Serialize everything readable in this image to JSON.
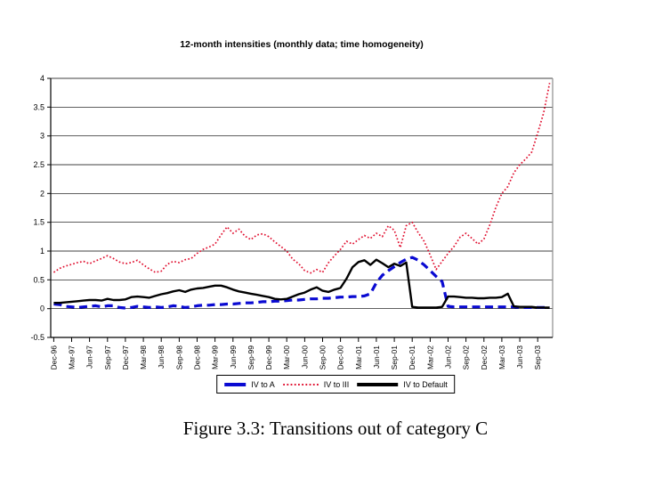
{
  "caption": "Figure 3.3: Transitions out of category C",
  "chart_data": {
    "type": "line",
    "title": "12-month intensities (monthly data; time homogeneity)",
    "xlabel": "",
    "ylabel": "",
    "ylim": [
      -0.5,
      4
    ],
    "ytick_step": 0.5,
    "y_tick_labels": [
      "4",
      "3.5",
      "3",
      "2.5",
      "2",
      "1.5",
      "1",
      "0.5",
      "0",
      "-0.5"
    ],
    "grid": "horizontal",
    "grid_color": "#000000",
    "axis_color": "#000000",
    "plot_border_right_color": "#8c8c8c",
    "legend_position": "bottom",
    "x_unit": "month",
    "x_start": "Dec-96",
    "months_per_tick": 3,
    "x_tick_labels": [
      "Dec-96",
      "Mar-97",
      "Jun-97",
      "Sep-97",
      "Dec-97",
      "Mar-98",
      "Jun-98",
      "Sep-98",
      "Dec-98",
      "Mar-99",
      "Jun-99",
      "Sep-99",
      "Dec-99",
      "Mar-00",
      "Jun-00",
      "Sep-00",
      "Dec-00",
      "Mar-01",
      "Jun-01",
      "Sep-01",
      "Dec-01",
      "Mar-02",
      "Jun-02",
      "Sep-02",
      "Dec-02",
      "Mar-03",
      "Jun-03",
      "Sep-03"
    ],
    "series": [
      {
        "name": "IV to A",
        "color": "#0a0ad2",
        "style": "dashed",
        "values": [
          0.08,
          0.07,
          0.04,
          0.03,
          0.02,
          0.03,
          0.04,
          0.05,
          0.03,
          0.05,
          0.05,
          0.02,
          0.01,
          0.02,
          0.04,
          0.03,
          0.02,
          0.03,
          0.02,
          0.03,
          0.05,
          0.04,
          0.02,
          0.03,
          0.05,
          0.06,
          0.06,
          0.07,
          0.07,
          0.08,
          0.08,
          0.09,
          0.1,
          0.1,
          0.11,
          0.12,
          0.12,
          0.13,
          0.13,
          0.14,
          0.15,
          0.15,
          0.16,
          0.17,
          0.17,
          0.18,
          0.18,
          0.19,
          0.2,
          0.2,
          0.21,
          0.21,
          0.22,
          0.26,
          0.45,
          0.58,
          0.66,
          0.73,
          0.8,
          0.86,
          0.89,
          0.84,
          0.76,
          0.66,
          0.56,
          0.47,
          0.04,
          0.03,
          0.03,
          0.03,
          0.03,
          0.03,
          0.03,
          0.03,
          0.03,
          0.03,
          0.03,
          0.03,
          0.02,
          0.02,
          0.02,
          0.02,
          0.02,
          0.02
        ]
      },
      {
        "name": "IV to III",
        "color": "#e01030",
        "style": "dotted",
        "values": [
          0.63,
          0.7,
          0.74,
          0.77,
          0.8,
          0.82,
          0.78,
          0.83,
          0.87,
          0.92,
          0.87,
          0.81,
          0.78,
          0.8,
          0.84,
          0.76,
          0.69,
          0.63,
          0.65,
          0.77,
          0.82,
          0.8,
          0.85,
          0.87,
          0.96,
          1.03,
          1.07,
          1.12,
          1.28,
          1.42,
          1.31,
          1.38,
          1.26,
          1.2,
          1.28,
          1.3,
          1.25,
          1.16,
          1.08,
          1.0,
          0.86,
          0.78,
          0.66,
          0.62,
          0.68,
          0.63,
          0.8,
          0.92,
          1.03,
          1.17,
          1.12,
          1.2,
          1.27,
          1.22,
          1.31,
          1.25,
          1.44,
          1.36,
          1.06,
          1.44,
          1.5,
          1.32,
          1.17,
          0.93,
          0.68,
          0.82,
          0.96,
          1.08,
          1.24,
          1.31,
          1.22,
          1.12,
          1.21,
          1.46,
          1.76,
          2.0,
          2.12,
          2.36,
          2.5,
          2.6,
          2.72,
          3.05,
          3.4,
          3.92
        ]
      },
      {
        "name": "IV to Default",
        "color": "#000000",
        "style": "solid",
        "values": [
          0.1,
          0.1,
          0.11,
          0.12,
          0.13,
          0.14,
          0.15,
          0.15,
          0.14,
          0.17,
          0.15,
          0.15,
          0.16,
          0.2,
          0.21,
          0.2,
          0.19,
          0.22,
          0.25,
          0.27,
          0.3,
          0.32,
          0.29,
          0.33,
          0.35,
          0.36,
          0.38,
          0.4,
          0.4,
          0.37,
          0.33,
          0.3,
          0.28,
          0.26,
          0.24,
          0.22,
          0.2,
          0.17,
          0.16,
          0.17,
          0.21,
          0.25,
          0.28,
          0.33,
          0.37,
          0.31,
          0.29,
          0.33,
          0.36,
          0.52,
          0.72,
          0.81,
          0.84,
          0.76,
          0.85,
          0.79,
          0.72,
          0.78,
          0.74,
          0.8,
          0.03,
          0.02,
          0.02,
          0.02,
          0.02,
          0.03,
          0.21,
          0.21,
          0.2,
          0.19,
          0.19,
          0.18,
          0.18,
          0.19,
          0.19,
          0.2,
          0.26,
          0.04,
          0.03,
          0.03,
          0.03,
          0.02,
          0.02,
          0.02
        ]
      }
    ]
  }
}
